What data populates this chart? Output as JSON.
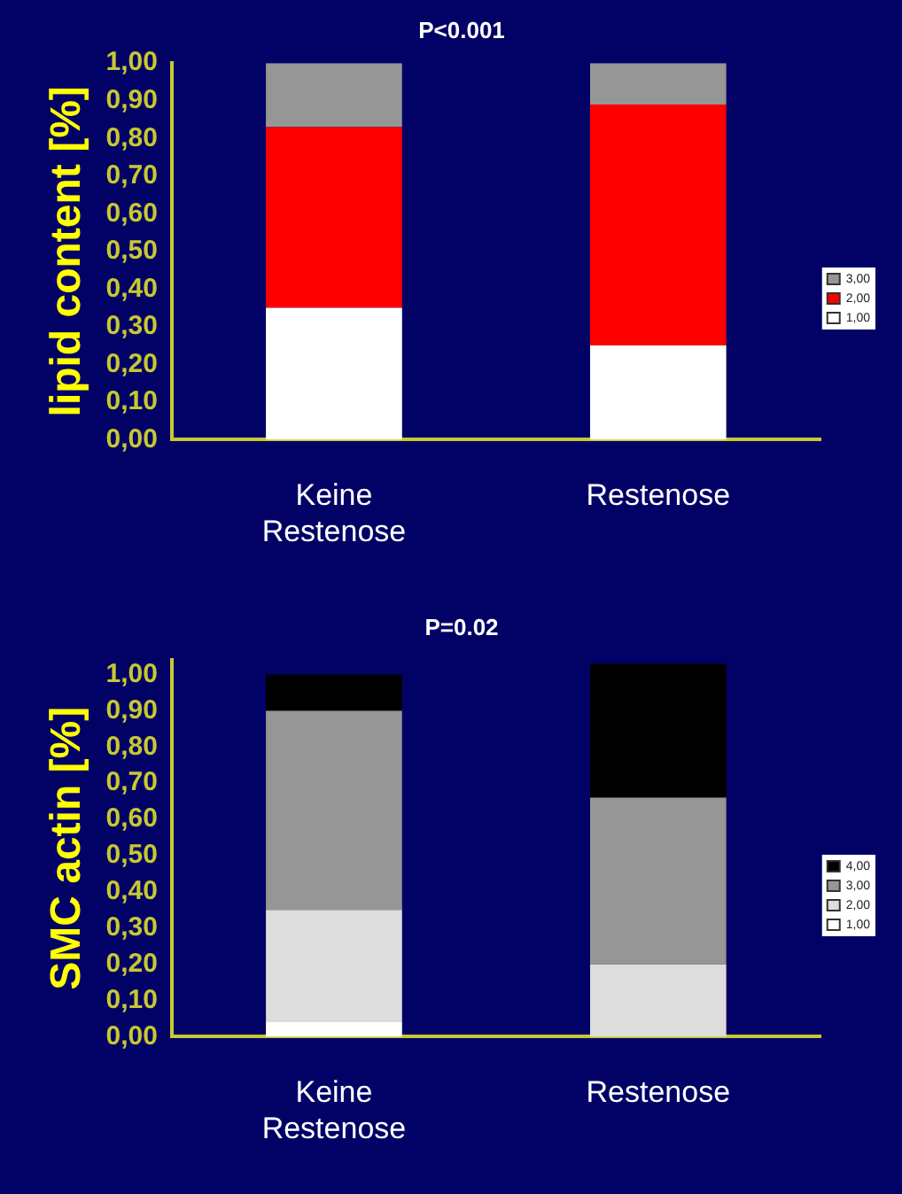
{
  "chart_data": [
    {
      "type": "bar",
      "title": "P<0.001",
      "ylabel": "lipid content [%]",
      "stacked": true,
      "legend": "right",
      "categories": [
        "Keine Restenose",
        "Restenose"
      ],
      "series": [
        {
          "name": "1,00",
          "color": "#ffffff",
          "values": [
            0.35,
            0.25
          ]
        },
        {
          "name": "2,00",
          "color": "#ff0000",
          "values": [
            0.48,
            0.64
          ]
        },
        {
          "name": "3,00",
          "color": "#969696",
          "values": [
            0.17,
            0.11
          ]
        }
      ],
      "ylim": [
        0,
        1
      ],
      "yticks": [
        {
          "value": 0,
          "label": "0,00"
        },
        {
          "value": 0.1,
          "label": "0,10"
        },
        {
          "value": 0.2,
          "label": "0,20"
        },
        {
          "value": 0.3,
          "label": "0,30"
        },
        {
          "value": 0.4,
          "label": "0,40"
        },
        {
          "value": 0.5,
          "label": "0,50"
        },
        {
          "value": 0.6,
          "label": "0,60"
        },
        {
          "value": 0.7,
          "label": "0,70"
        },
        {
          "value": 0.8,
          "label": "0,80"
        },
        {
          "value": 0.9,
          "label": "0,90"
        },
        {
          "value": 1,
          "label": "1,00"
        }
      ]
    },
    {
      "type": "bar",
      "title": "P=0.02",
      "ylabel": "SMC actin [%]",
      "stacked": true,
      "legend": "right",
      "categories": [
        "Keine Restenose",
        "Restenose"
      ],
      "series": [
        {
          "name": "1,00",
          "color": "#ffffff",
          "values": [
            0.04,
            0
          ]
        },
        {
          "name": "2,00",
          "color": "#dddddd",
          "values": [
            0.31,
            0.2
          ]
        },
        {
          "name": "3,00",
          "color": "#969696",
          "values": [
            0.55,
            0.46
          ]
        },
        {
          "name": "4,00",
          "color": "#000000",
          "values": [
            0.1,
            0.37
          ]
        }
      ],
      "ylim": [
        0,
        1.04
      ],
      "yticks": [
        {
          "value": 0,
          "label": "0,00"
        },
        {
          "value": 0.1,
          "label": "0,10"
        },
        {
          "value": 0.2,
          "label": "0,20"
        },
        {
          "value": 0.3,
          "label": "0,30"
        },
        {
          "value": 0.4,
          "label": "0,40"
        },
        {
          "value": 0.5,
          "label": "0,50"
        },
        {
          "value": 0.6,
          "label": "0,60"
        },
        {
          "value": 0.7,
          "label": "0,70"
        },
        {
          "value": 0.8,
          "label": "0,80"
        },
        {
          "value": 0.9,
          "label": "0,90"
        },
        {
          "value": 1,
          "label": "1,00"
        }
      ]
    }
  ]
}
